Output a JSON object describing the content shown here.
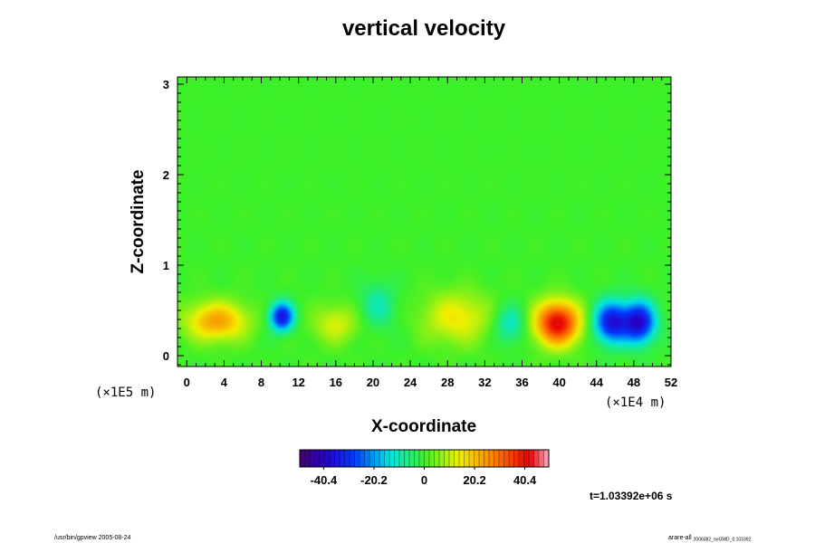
{
  "chart_data": {
    "type": "heatmap",
    "title": "vertical velocity",
    "xlabel": "X-coordinate",
    "ylabel": "Z-coordinate",
    "x_unit": "(×1E4 m)",
    "y_unit": "(×1E5 m)",
    "xlim": [
      -1,
      52
    ],
    "ylim": [
      -0.12,
      3.08
    ],
    "x_ticks": [
      "0",
      "4",
      "8",
      "12",
      "16",
      "20",
      "24",
      "28",
      "32",
      "36",
      "40",
      "44",
      "48",
      "52"
    ],
    "y_ticks": [
      "0",
      "1",
      "2",
      "3"
    ],
    "colorbar": {
      "ticks": [
        "-40.4",
        "-20.2",
        "0",
        "20.2",
        "40.4"
      ],
      "range": [
        -50,
        50
      ],
      "colormap": "rainbow (purple-blue-cyan-green-yellow-red-pink)"
    },
    "background_value": 0,
    "features": [
      {
        "x": 3.2,
        "z": 0.38,
        "value": 24,
        "sx": 2.3,
        "sz": 0.15
      },
      {
        "x": 10.2,
        "z": 0.43,
        "value": -36,
        "sx": 0.9,
        "sz": 0.11
      },
      {
        "x": 16.0,
        "z": 0.35,
        "value": 12,
        "sx": 1.8,
        "sz": 0.15
      },
      {
        "x": 20.5,
        "z": 0.55,
        "value": -10,
        "sx": 1.4,
        "sz": 0.18
      },
      {
        "x": 29.0,
        "z": 0.42,
        "value": 15,
        "sx": 2.6,
        "sz": 0.2
      },
      {
        "x": 34.7,
        "z": 0.35,
        "value": -13,
        "sx": 1.2,
        "sz": 0.15
      },
      {
        "x": 39.8,
        "z": 0.36,
        "value": 43,
        "sx": 1.7,
        "sz": 0.17
      },
      {
        "x": 45.6,
        "z": 0.37,
        "value": -36,
        "sx": 1.3,
        "sz": 0.16
      },
      {
        "x": 48.6,
        "z": 0.37,
        "value": -38,
        "sx": 1.2,
        "sz": 0.16
      }
    ]
  },
  "time_label": "t=1.03392e+06 s",
  "footer": {
    "left": "/usr/bin/gpview 2005-08-24",
    "right_main": "arare-all",
    "right_sub": "2006082_noGWD_0.103392"
  }
}
